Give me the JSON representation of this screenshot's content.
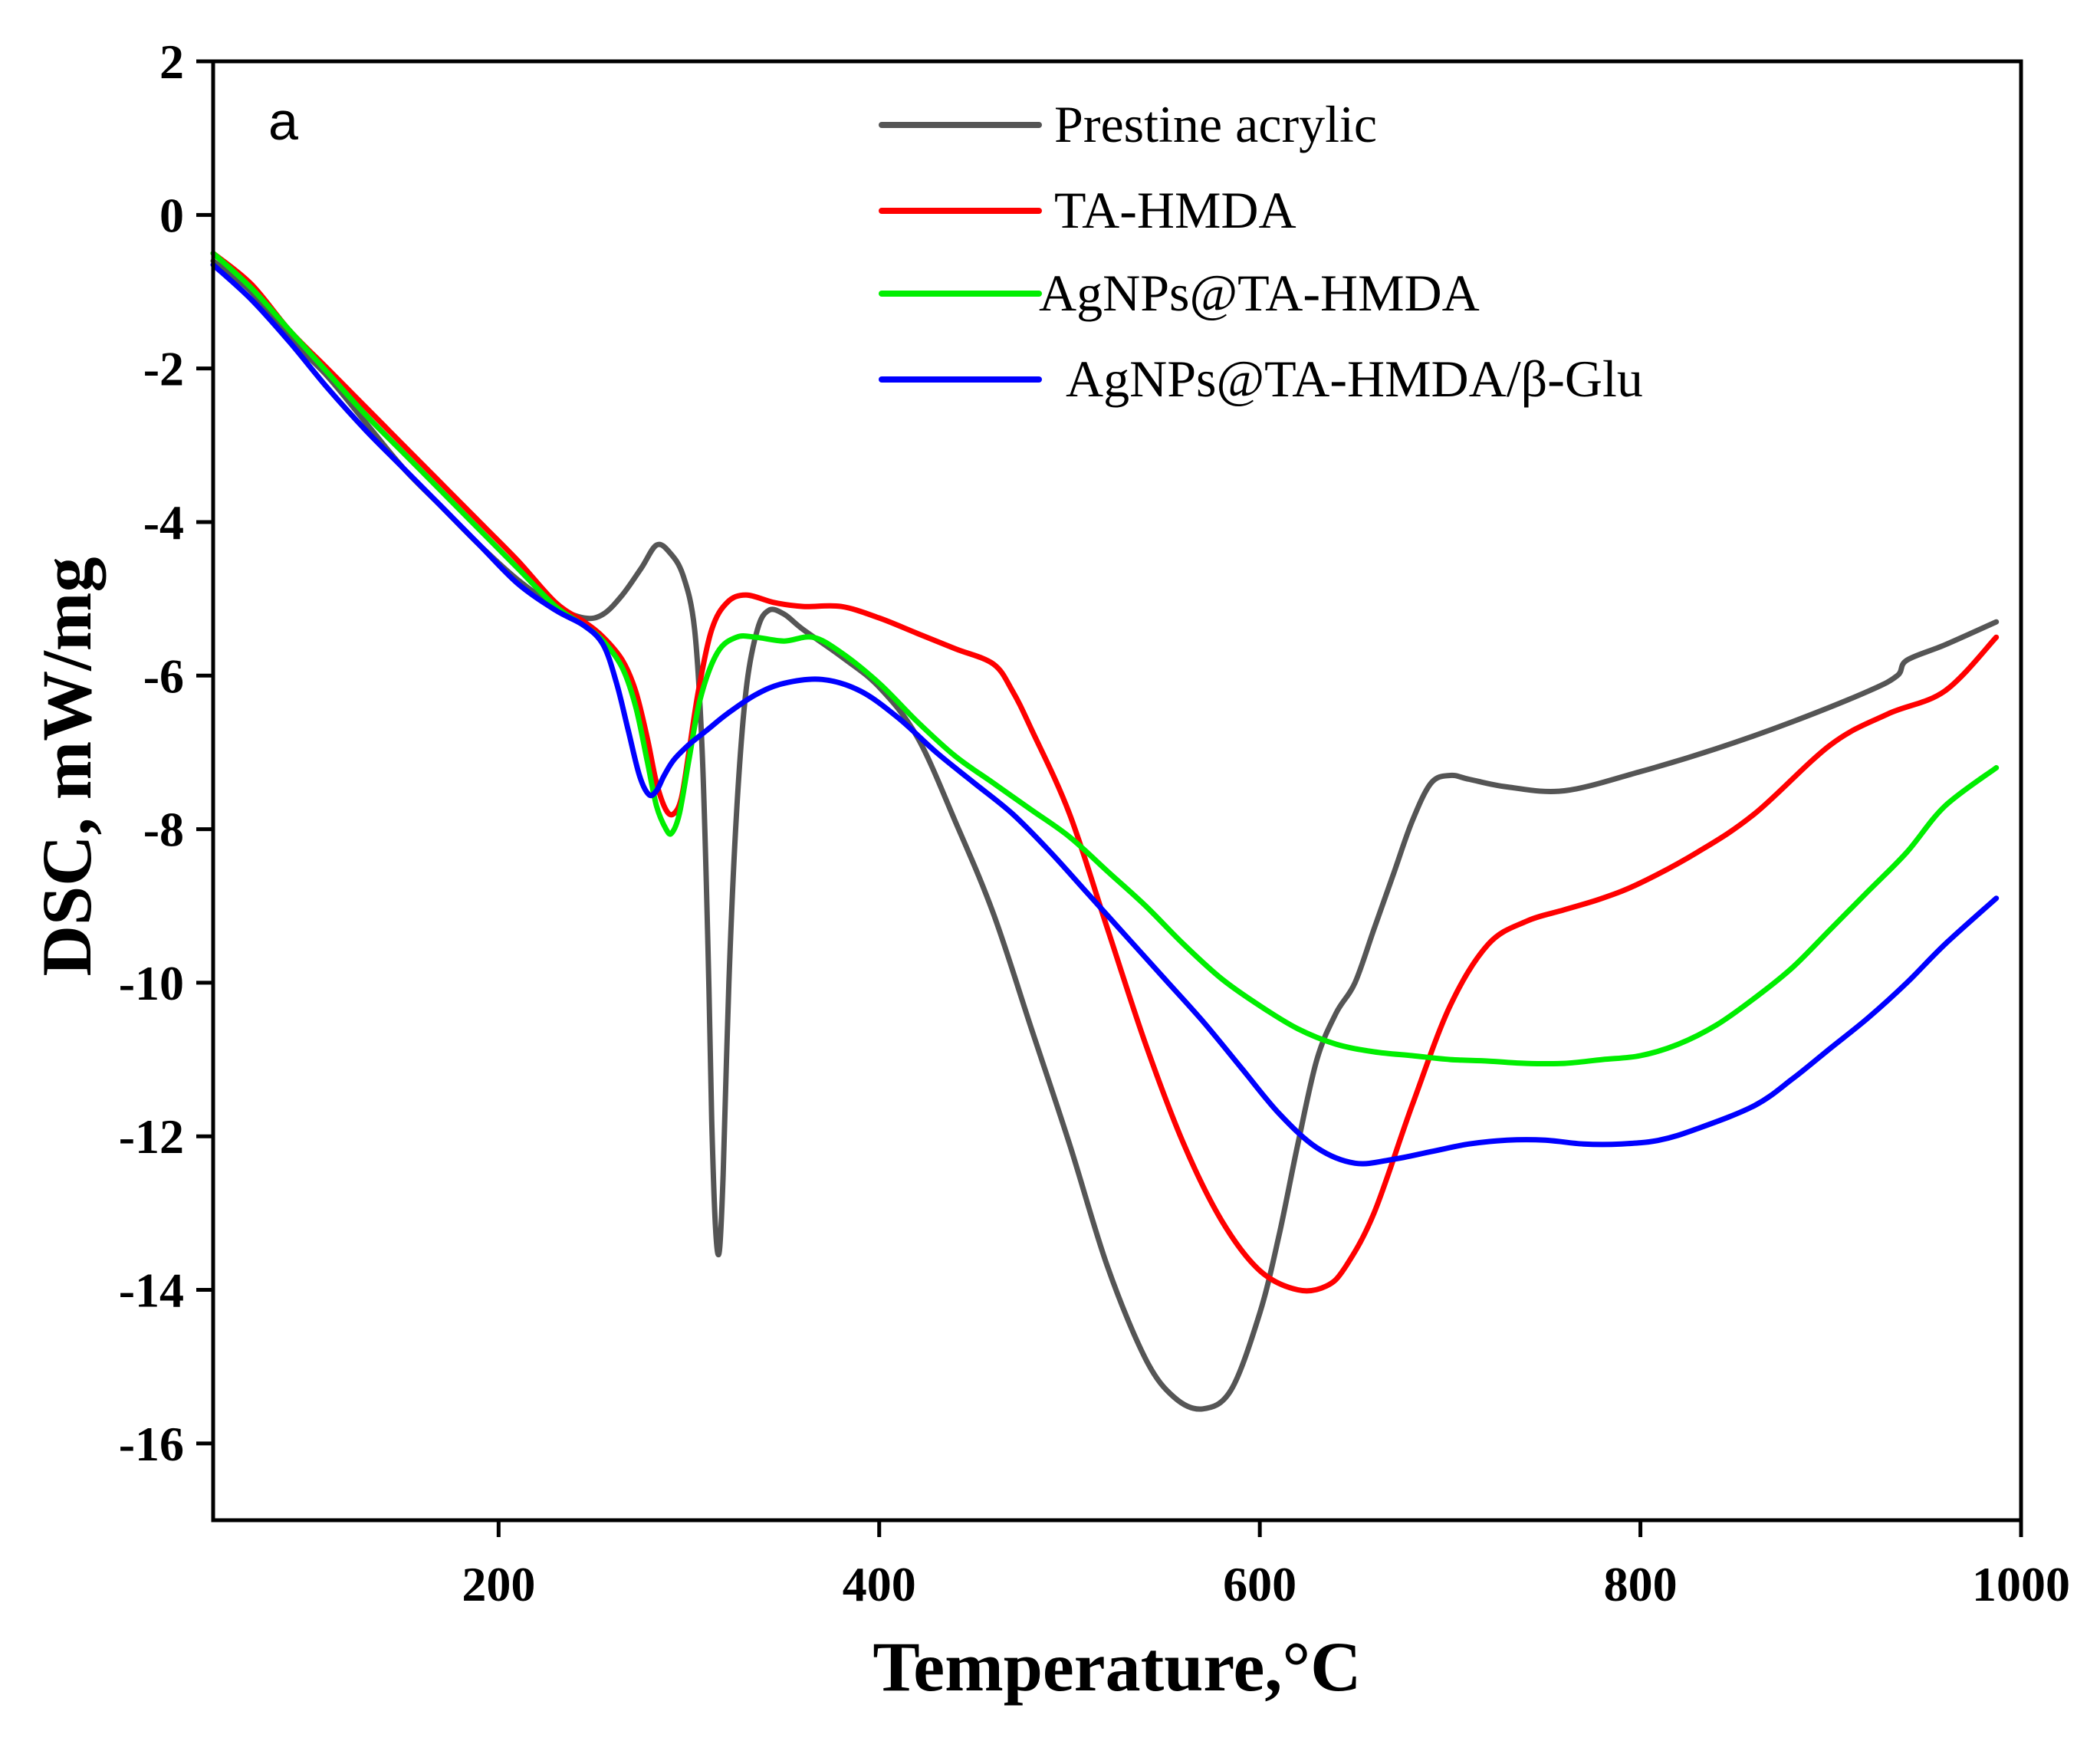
{
  "chart_data": {
    "type": "line",
    "panel_label": "a",
    "xlabel": "Temperature,°C",
    "ylabel": "DSC, mW/mg",
    "xlim": [
      50,
      1000
    ],
    "ylim": [
      -17,
      2
    ],
    "xticks": [
      200,
      400,
      600,
      800,
      1000
    ],
    "yticks": [
      2,
      0,
      -2,
      -4,
      -6,
      -8,
      -10,
      -12,
      -14,
      -16
    ],
    "grid": false,
    "legend_position": "top-right",
    "series": [
      {
        "name": "Prestine acrylic",
        "color": "#555555",
        "x": [
          50,
          70,
          90,
          110,
          130,
          150,
          170,
          190,
          210,
          230,
          245,
          255,
          265,
          275,
          283,
          290,
          297,
          303,
          307,
          310,
          312,
          314,
          316,
          318,
          321,
          325,
          330,
          336,
          342,
          350,
          360,
          380,
          400,
          420,
          440,
          460,
          480,
          500,
          520,
          540,
          555,
          570,
          585,
          600,
          610,
          620,
          630,
          640,
          650,
          660,
          670,
          680,
          690,
          700,
          710,
          730,
          760,
          800,
          840,
          880,
          920,
          935,
          940,
          960,
          987
        ],
        "y": [
          -0.6,
          -1.0,
          -1.6,
          -2.1,
          -2.7,
          -3.3,
          -3.8,
          -4.3,
          -4.75,
          -5.1,
          -5.25,
          -5.2,
          -4.95,
          -4.6,
          -4.3,
          -4.4,
          -4.7,
          -5.4,
          -7.0,
          -9.5,
          -11.8,
          -13.2,
          -13.5,
          -12.5,
          -10.0,
          -7.8,
          -6.2,
          -5.4,
          -5.15,
          -5.2,
          -5.4,
          -5.75,
          -6.15,
          -6.8,
          -7.9,
          -9.1,
          -10.6,
          -12.1,
          -13.7,
          -14.9,
          -15.4,
          -15.55,
          -15.3,
          -14.3,
          -13.3,
          -12.1,
          -11.0,
          -10.4,
          -10.0,
          -9.3,
          -8.6,
          -7.9,
          -7.4,
          -7.3,
          -7.35,
          -7.45,
          -7.5,
          -7.25,
          -6.95,
          -6.6,
          -6.2,
          -6.0,
          -5.8,
          -5.6,
          -5.3
        ]
      },
      {
        "name": "TA-HMDA",
        "color": "#ff0000",
        "x": [
          50,
          70,
          90,
          110,
          130,
          150,
          170,
          190,
          210,
          230,
          245,
          255,
          265,
          272,
          278,
          283,
          288,
          292,
          296,
          300,
          305,
          312,
          320,
          330,
          345,
          360,
          380,
          400,
          420,
          440,
          460,
          470,
          480,
          500,
          520,
          540,
          560,
          580,
          600,
          620,
          635,
          645,
          660,
          680,
          700,
          720,
          740,
          760,
          780,
          800,
          830,
          860,
          900,
          930,
          960,
          987
        ],
        "y": [
          -0.5,
          -0.9,
          -1.5,
          -2.0,
          -2.5,
          -3.0,
          -3.5,
          -4.0,
          -4.5,
          -5.05,
          -5.3,
          -5.5,
          -5.8,
          -6.2,
          -6.8,
          -7.4,
          -7.75,
          -7.8,
          -7.6,
          -7.0,
          -6.2,
          -5.4,
          -5.05,
          -4.95,
          -5.05,
          -5.1,
          -5.1,
          -5.25,
          -5.45,
          -5.65,
          -5.85,
          -6.2,
          -6.7,
          -7.8,
          -9.3,
          -10.8,
          -12.1,
          -13.1,
          -13.75,
          -14.0,
          -13.95,
          -13.7,
          -13.0,
          -11.6,
          -10.3,
          -9.5,
          -9.2,
          -9.05,
          -8.9,
          -8.7,
          -8.3,
          -7.8,
          -6.9,
          -6.5,
          -6.2,
          -5.5
        ]
      },
      {
        "name": "AgNPs@TA-HMDA",
        "color": "#00ee00",
        "x": [
          50,
          70,
          90,
          110,
          130,
          150,
          170,
          190,
          210,
          230,
          245,
          255,
          265,
          272,
          278,
          283,
          288,
          291,
          295,
          300,
          306,
          315,
          325,
          335,
          350,
          365,
          380,
          400,
          420,
          440,
          460,
          480,
          500,
          520,
          540,
          560,
          580,
          600,
          620,
          640,
          660,
          680,
          700,
          720,
          740,
          760,
          780,
          800,
          820,
          840,
          860,
          880,
          900,
          920,
          940,
          960,
          987
        ],
        "y": [
          -0.5,
          -0.95,
          -1.5,
          -2.05,
          -2.6,
          -3.1,
          -3.6,
          -4.1,
          -4.6,
          -5.1,
          -5.35,
          -5.55,
          -5.9,
          -6.4,
          -7.1,
          -7.7,
          -8.0,
          -8.05,
          -7.8,
          -7.1,
          -6.3,
          -5.7,
          -5.5,
          -5.5,
          -5.55,
          -5.5,
          -5.7,
          -6.1,
          -6.6,
          -7.05,
          -7.4,
          -7.75,
          -8.1,
          -8.55,
          -9.0,
          -9.5,
          -9.95,
          -10.3,
          -10.6,
          -10.8,
          -10.9,
          -10.95,
          -11.0,
          -11.02,
          -11.05,
          -11.05,
          -11.0,
          -10.95,
          -10.8,
          -10.55,
          -10.2,
          -9.8,
          -9.3,
          -8.8,
          -8.3,
          -7.7,
          -7.2
        ]
      },
      {
        "name": "AgNPs@TA-HMDA/β-Glu",
        "color": "#0000ff",
        "x": [
          50,
          70,
          90,
          110,
          130,
          150,
          170,
          190,
          210,
          230,
          245,
          255,
          262,
          268,
          274,
          279,
          283,
          287,
          292,
          300,
          310,
          320,
          335,
          350,
          370,
          390,
          410,
          430,
          450,
          470,
          490,
          510,
          530,
          550,
          570,
          590,
          610,
          630,
          650,
          670,
          690,
          710,
          730,
          750,
          770,
          790,
          810,
          830,
          860,
          880,
          900,
          920,
          940,
          960,
          987
        ],
        "y": [
          -0.65,
          -1.1,
          -1.65,
          -2.25,
          -2.8,
          -3.3,
          -3.8,
          -4.3,
          -4.8,
          -5.15,
          -5.35,
          -5.6,
          -6.1,
          -6.7,
          -7.3,
          -7.55,
          -7.5,
          -7.3,
          -7.1,
          -6.9,
          -6.7,
          -6.5,
          -6.25,
          -6.1,
          -6.05,
          -6.2,
          -6.55,
          -7.0,
          -7.4,
          -7.8,
          -8.3,
          -8.85,
          -9.4,
          -9.95,
          -10.5,
          -11.1,
          -11.7,
          -12.15,
          -12.35,
          -12.3,
          -12.2,
          -12.1,
          -12.05,
          -12.05,
          -12.1,
          -12.1,
          -12.05,
          -11.9,
          -11.6,
          -11.25,
          -10.85,
          -10.45,
          -10.0,
          -9.5,
          -8.9
        ]
      }
    ]
  }
}
